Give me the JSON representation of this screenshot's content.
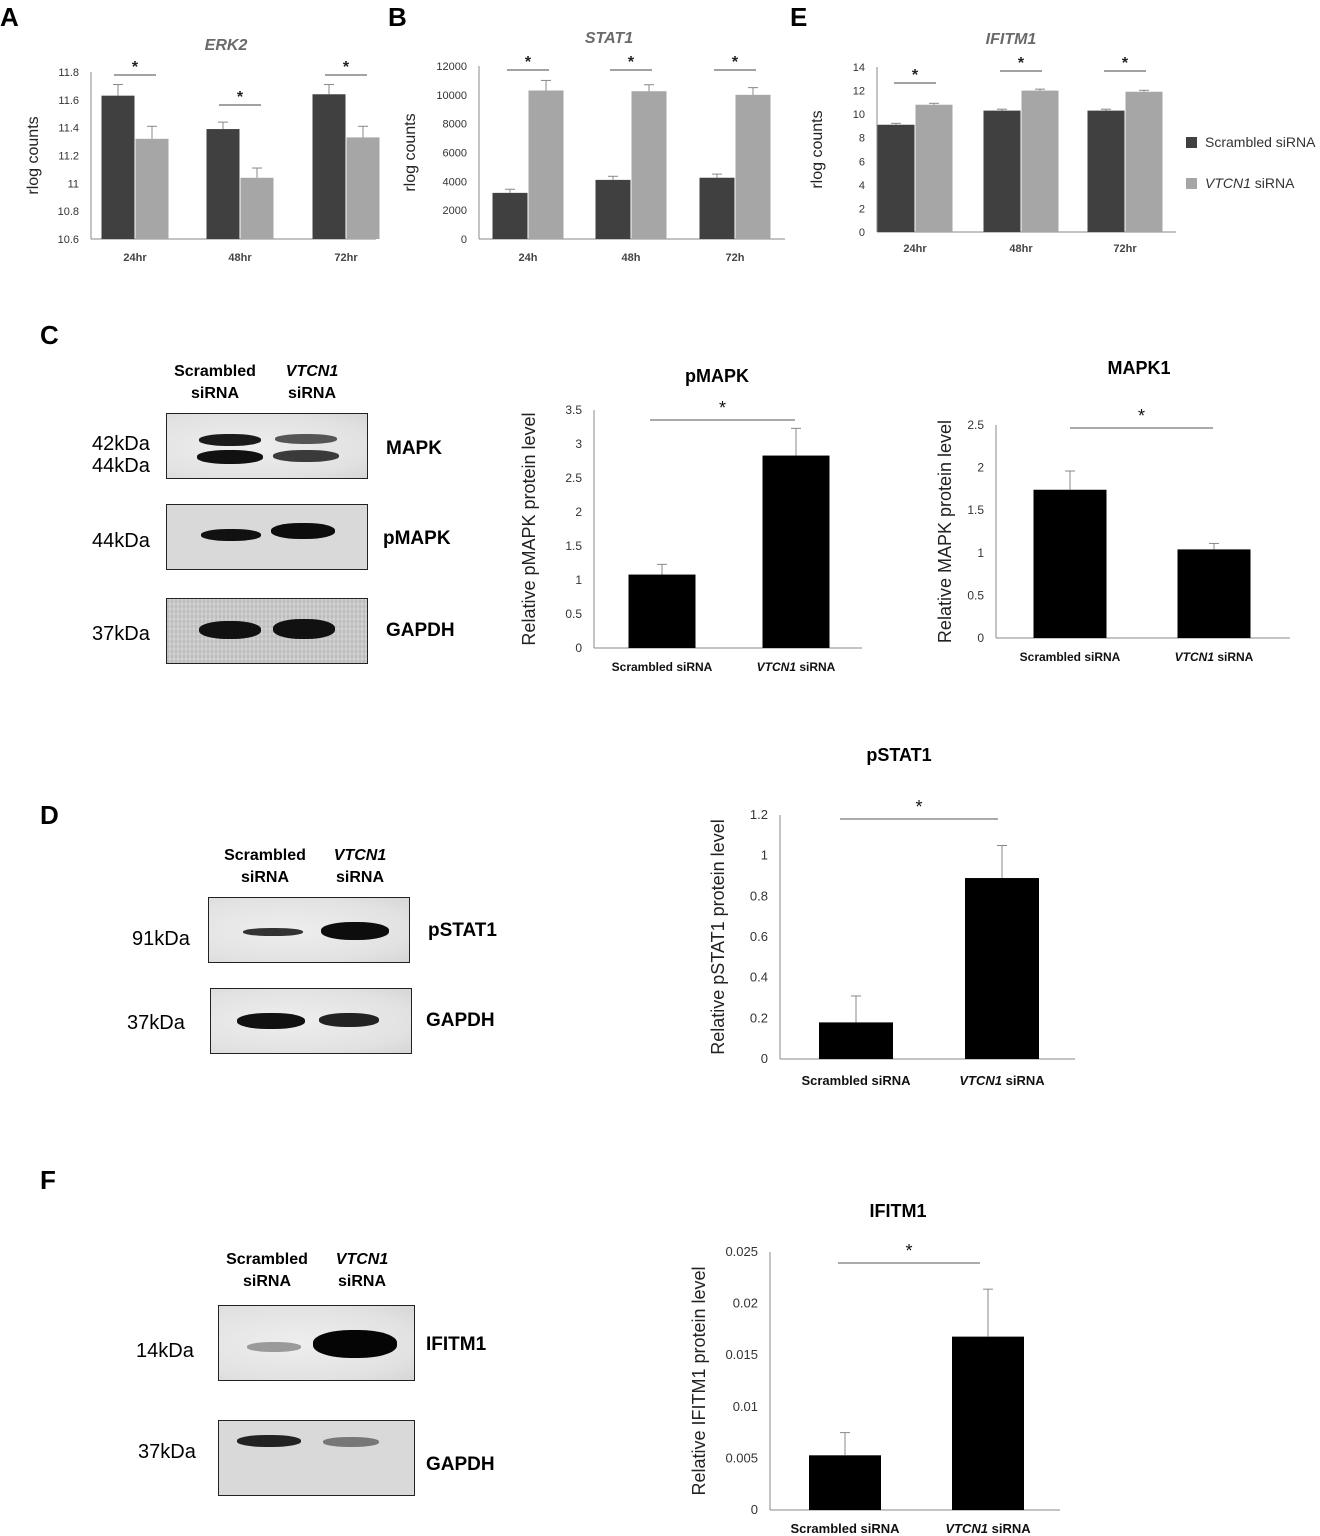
{
  "panels": {
    "A": "A",
    "B": "B",
    "C": "C",
    "D": "D",
    "E": "E",
    "F": "F"
  },
  "colors": {
    "scrambled_dark": "#404040",
    "vtcn1_light": "#a6a6a6",
    "western_bar": "#000000"
  },
  "legend": {
    "scrambled": "Scrambled siRNA",
    "vtcn1_italic": "VTCN1",
    "vtcn1_rest": " siRNA"
  },
  "blots": {
    "C": {
      "lane1_line1": "Scrambled",
      "lane1_line2": "siRNA",
      "lane2_line1": "VTCN1",
      "lane2_line2": "siRNA",
      "mapk_kda_1": "42kDa",
      "mapk_kda_2": "44kDa",
      "mapk_label": "MAPK",
      "pmapk_kda": "44kDa",
      "pmapk_label": "pMAPK",
      "gapdh_kda": "37kDa",
      "gapdh_label": "GAPDH"
    },
    "D": {
      "lane1_line1": "Scrambled",
      "lane1_line2": "siRNA",
      "lane2_line1": "VTCN1",
      "lane2_line2": "siRNA",
      "pstat1_kda": "91kDa",
      "pstat1_label": "pSTAT1",
      "gapdh_kda": "37kDa",
      "gapdh_label": "GAPDH"
    },
    "F": {
      "lane1_line1": "Scrambled",
      "lane1_line2": "siRNA",
      "lane2_line1": "VTCN1",
      "lane2_line2": "siRNA",
      "ifitm1_kda": "14kDa",
      "ifitm1_label": "IFITM1",
      "gapdh_kda": "37kDa",
      "gapdh_label": "GAPDH"
    }
  },
  "chart_data": [
    {
      "id": "A",
      "type": "bar",
      "title": "ERK2",
      "title_italic": true,
      "title_color": "#6a6a6a",
      "ylabel": "rlog counts",
      "xlabel": "",
      "categories": [
        "24hr",
        "48hr",
        "72hr"
      ],
      "ylim": [
        10.6,
        11.8
      ],
      "yticks": [
        10.6,
        10.8,
        11,
        11.2,
        11.4,
        11.6,
        11.8
      ],
      "ytick_labels": [
        "10.6",
        "10.8",
        "11",
        "11.2",
        "11.4",
        "11.6",
        "11.8"
      ],
      "series": [
        {
          "name": "Scrambled siRNA",
          "values": [
            11.63,
            11.39,
            11.64
          ],
          "errors": [
            0.08,
            0.05,
            0.07
          ]
        },
        {
          "name": "VTCN1 siRNA",
          "values": [
            11.32,
            11.04,
            11.33
          ],
          "errors": [
            0.09,
            0.07,
            0.08
          ]
        }
      ],
      "significance": [
        "*",
        "*",
        "*"
      ],
      "grid": false
    },
    {
      "id": "B",
      "type": "bar",
      "title": "STAT1",
      "title_italic": true,
      "title_color": "#6a6a6a",
      "ylabel": "rlog counts",
      "xlabel": "",
      "categories": [
        "24h",
        "48h",
        "72h"
      ],
      "ylim": [
        0,
        12000
      ],
      "yticks": [
        0,
        2000,
        4000,
        6000,
        8000,
        10000,
        12000
      ],
      "ytick_labels": [
        "0",
        "2000",
        "4000",
        "6000",
        "8000",
        "10000",
        "12000"
      ],
      "series": [
        {
          "name": "Scrambled siRNA",
          "values": [
            3200,
            4100,
            4250
          ],
          "errors": [
            250,
            250,
            250
          ]
        },
        {
          "name": "VTCN1 siRNA",
          "values": [
            10300,
            10250,
            10000
          ],
          "errors": [
            700,
            450,
            500
          ]
        }
      ],
      "significance": [
        "*",
        "*",
        "*"
      ],
      "grid": false
    },
    {
      "id": "E",
      "type": "bar",
      "title": "IFITM1",
      "title_italic": true,
      "title_color": "#6a6a6a",
      "ylabel": "rlog counts",
      "xlabel": "",
      "categories": [
        "24hr",
        "48hr",
        "72hr"
      ],
      "ylim": [
        0,
        14
      ],
      "yticks": [
        0,
        2,
        4,
        6,
        8,
        10,
        12,
        14
      ],
      "ytick_labels": [
        "0",
        "2",
        "4",
        "6",
        "8",
        "10",
        "12",
        "14"
      ],
      "series": [
        {
          "name": "Scrambled siRNA",
          "values": [
            9.1,
            10.3,
            10.3
          ],
          "errors": [
            0.12,
            0.12,
            0.12
          ]
        },
        {
          "name": "VTCN1 siRNA",
          "values": [
            10.8,
            12.0,
            11.9
          ],
          "errors": [
            0.12,
            0.12,
            0.12
          ]
        }
      ],
      "significance": [
        "*",
        "*",
        "*"
      ],
      "legend_position": "right",
      "grid": false
    },
    {
      "id": "C-pMAPK",
      "type": "bar",
      "title": "pMAPK",
      "ylabel": "Relative pMAPK protein level",
      "xlabel": "",
      "categories": [
        "Scrambled siRNA",
        "VTCN1 siRNA"
      ],
      "ylim": [
        0,
        3.5
      ],
      "yticks": [
        0,
        0.5,
        1,
        1.5,
        2,
        2.5,
        3,
        3.5
      ],
      "ytick_labels": [
        "0",
        "0.5",
        "1",
        "1.5",
        "2",
        "2.5",
        "3",
        "3.5"
      ],
      "values": [
        1.08,
        2.83
      ],
      "errors": [
        0.15,
        0.4
      ],
      "significance": "*",
      "grid": false
    },
    {
      "id": "C-MAPK1",
      "type": "bar",
      "title": "MAPK1",
      "ylabel": "Relative MAPK protein level",
      "xlabel": "",
      "categories": [
        "Scrambled siRNA",
        "VTCN1 siRNA"
      ],
      "ylim": [
        0,
        2.5
      ],
      "yticks": [
        0,
        0.5,
        1,
        1.5,
        2,
        2.5
      ],
      "ytick_labels": [
        "0",
        "0.5",
        "1",
        "1.5",
        "2",
        "2.5"
      ],
      "values": [
        1.74,
        1.04
      ],
      "errors": [
        0.22,
        0.07
      ],
      "significance": "*",
      "grid": false
    },
    {
      "id": "D-pSTAT1",
      "type": "bar",
      "title": "pSTAT1",
      "ylabel": "Relative pSTAT1 protein level",
      "xlabel": "",
      "categories": [
        "Scrambled siRNA",
        "VTCN1 siRNA"
      ],
      "ylim": [
        0,
        1.2
      ],
      "yticks": [
        0,
        0.2,
        0.4,
        0.6,
        0.8,
        1,
        1.2
      ],
      "ytick_labels": [
        "0",
        "0.2",
        "0.4",
        "0.6",
        "0.8",
        "1",
        "1.2"
      ],
      "values": [
        0.18,
        0.89
      ],
      "errors": [
        0.13,
        0.16
      ],
      "significance": "*",
      "grid": false
    },
    {
      "id": "F-IFITM1",
      "type": "bar",
      "title": "IFITM1",
      "ylabel": "Relative IFITM1 protein level",
      "xlabel": "",
      "categories": [
        "Scrambled siRNA",
        "VTCN1 siRNA"
      ],
      "ylim": [
        0,
        0.025
      ],
      "yticks": [
        0,
        0.005,
        0.01,
        0.015,
        0.02,
        0.025
      ],
      "ytick_labels": [
        "0",
        "0.005",
        "0.01",
        "0.015",
        "0.02",
        "0.025"
      ],
      "values": [
        0.0053,
        0.0168
      ],
      "errors": [
        0.0022,
        0.0046
      ],
      "significance": "*",
      "grid": false
    }
  ]
}
